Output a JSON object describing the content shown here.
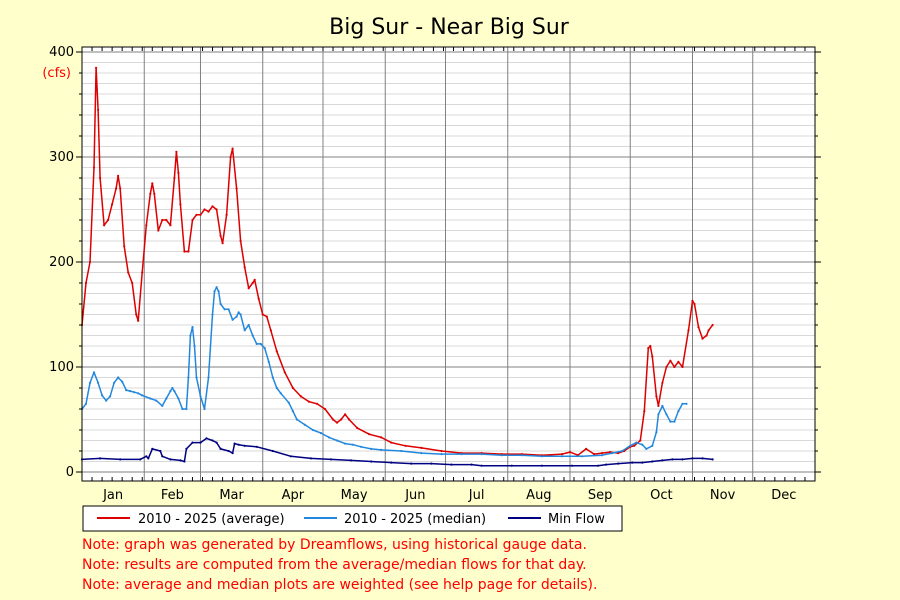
{
  "chart_data": {
    "type": "line",
    "title": "Big Sur - Near Big Sur",
    "ylabel": "(cfs)",
    "xlabel": "",
    "ylim": [
      0,
      400
    ],
    "xlim": [
      1,
      366
    ],
    "y_ticks": [
      0,
      100,
      200,
      300,
      400
    ],
    "x_tick_labels": [
      "Jan",
      "Feb",
      "Mar",
      "Apr",
      "May",
      "Jun",
      "Jul",
      "Aug",
      "Sep",
      "Oct",
      "Nov",
      "Dec"
    ],
    "grid": true,
    "series": [
      {
        "name": "2010 - 2025 (average)",
        "color": "#dd0000",
        "points": [
          [
            1,
            140
          ],
          [
            3,
            180
          ],
          [
            5,
            200
          ],
          [
            7,
            290
          ],
          [
            8,
            385
          ],
          [
            9,
            345
          ],
          [
            10,
            280
          ],
          [
            12,
            235
          ],
          [
            14,
            240
          ],
          [
            16,
            255
          ],
          [
            18,
            270
          ],
          [
            19,
            282
          ],
          [
            20,
            270
          ],
          [
            22,
            215
          ],
          [
            24,
            190
          ],
          [
            26,
            180
          ],
          [
            28,
            150
          ],
          [
            29,
            144
          ],
          [
            31,
            190
          ],
          [
            33,
            235
          ],
          [
            35,
            265
          ],
          [
            36,
            275
          ],
          [
            37,
            265
          ],
          [
            39,
            230
          ],
          [
            41,
            240
          ],
          [
            43,
            240
          ],
          [
            45,
            235
          ],
          [
            47,
            280
          ],
          [
            48,
            305
          ],
          [
            49,
            285
          ],
          [
            50,
            255
          ],
          [
            52,
            210
          ],
          [
            54,
            210
          ],
          [
            56,
            240
          ],
          [
            58,
            245
          ],
          [
            60,
            245
          ],
          [
            62,
            250
          ],
          [
            64,
            248
          ],
          [
            66,
            253
          ],
          [
            68,
            250
          ],
          [
            70,
            225
          ],
          [
            71,
            218
          ],
          [
            73,
            245
          ],
          [
            75,
            300
          ],
          [
            76,
            308
          ],
          [
            78,
            270
          ],
          [
            80,
            220
          ],
          [
            82,
            195
          ],
          [
            84,
            175
          ],
          [
            86,
            180
          ],
          [
            87,
            183
          ],
          [
            89,
            165
          ],
          [
            91,
            150
          ],
          [
            93,
            148
          ],
          [
            95,
            135
          ],
          [
            98,
            115
          ],
          [
            102,
            95
          ],
          [
            106,
            80
          ],
          [
            110,
            72
          ],
          [
            114,
            67
          ],
          [
            118,
            65
          ],
          [
            122,
            60
          ],
          [
            126,
            50
          ],
          [
            128,
            47
          ],
          [
            130,
            50
          ],
          [
            132,
            55
          ],
          [
            134,
            50
          ],
          [
            138,
            42
          ],
          [
            144,
            36
          ],
          [
            150,
            33
          ],
          [
            155,
            28
          ],
          [
            162,
            25
          ],
          [
            170,
            23
          ],
          [
            180,
            20
          ],
          [
            190,
            18
          ],
          [
            200,
            18
          ],
          [
            210,
            17
          ],
          [
            220,
            17
          ],
          [
            230,
            16
          ],
          [
            240,
            17
          ],
          [
            244,
            19
          ],
          [
            248,
            16
          ],
          [
            252,
            22
          ],
          [
            256,
            17
          ],
          [
            260,
            18
          ],
          [
            264,
            19
          ],
          [
            268,
            18
          ],
          [
            271,
            20
          ],
          [
            274,
            24
          ],
          [
            276,
            25
          ],
          [
            279,
            30
          ],
          [
            281,
            58
          ],
          [
            283,
            118
          ],
          [
            284,
            120
          ],
          [
            285,
            110
          ],
          [
            287,
            72
          ],
          [
            288,
            63
          ],
          [
            290,
            85
          ],
          [
            292,
            100
          ],
          [
            294,
            106
          ],
          [
            296,
            100
          ],
          [
            298,
            105
          ],
          [
            300,
            100
          ],
          [
            303,
            135
          ],
          [
            305,
            163
          ],
          [
            306,
            160
          ],
          [
            308,
            138
          ],
          [
            310,
            127
          ],
          [
            312,
            130
          ],
          [
            313,
            135
          ],
          [
            315,
            140
          ]
        ]
      },
      {
        "name": "2010 - 2025 (median)",
        "color": "#2288dd",
        "points": [
          [
            1,
            60
          ],
          [
            3,
            65
          ],
          [
            5,
            85
          ],
          [
            7,
            95
          ],
          [
            9,
            85
          ],
          [
            11,
            73
          ],
          [
            13,
            68
          ],
          [
            15,
            72
          ],
          [
            17,
            85
          ],
          [
            19,
            90
          ],
          [
            21,
            86
          ],
          [
            23,
            78
          ],
          [
            25,
            77
          ],
          [
            27,
            76
          ],
          [
            29,
            75
          ],
          [
            31,
            73
          ],
          [
            35,
            70
          ],
          [
            38,
            68
          ],
          [
            41,
            63
          ],
          [
            43,
            70
          ],
          [
            45,
            77
          ],
          [
            46,
            80
          ],
          [
            47,
            77
          ],
          [
            49,
            70
          ],
          [
            51,
            60
          ],
          [
            53,
            60
          ],
          [
            54,
            90
          ],
          [
            55,
            130
          ],
          [
            56,
            138
          ],
          [
            57,
            120
          ],
          [
            58,
            90
          ],
          [
            60,
            72
          ],
          [
            62,
            60
          ],
          [
            64,
            90
          ],
          [
            66,
            150
          ],
          [
            67,
            172
          ],
          [
            68,
            176
          ],
          [
            69,
            172
          ],
          [
            70,
            160
          ],
          [
            72,
            155
          ],
          [
            74,
            155
          ],
          [
            76,
            145
          ],
          [
            78,
            148
          ],
          [
            79,
            152
          ],
          [
            80,
            150
          ],
          [
            82,
            135
          ],
          [
            84,
            140
          ],
          [
            86,
            130
          ],
          [
            88,
            122
          ],
          [
            90,
            122
          ],
          [
            92,
            118
          ],
          [
            94,
            105
          ],
          [
            96,
            90
          ],
          [
            98,
            80
          ],
          [
            100,
            75
          ],
          [
            104,
            66
          ],
          [
            106,
            58
          ],
          [
            108,
            50
          ],
          [
            112,
            45
          ],
          [
            116,
            40
          ],
          [
            120,
            37
          ],
          [
            124,
            33
          ],
          [
            128,
            30
          ],
          [
            132,
            27
          ],
          [
            136,
            26
          ],
          [
            140,
            24
          ],
          [
            145,
            22
          ],
          [
            150,
            21
          ],
          [
            160,
            20
          ],
          [
            170,
            18
          ],
          [
            180,
            17
          ],
          [
            190,
            17
          ],
          [
            200,
            17
          ],
          [
            210,
            16
          ],
          [
            220,
            16
          ],
          [
            230,
            15
          ],
          [
            240,
            15
          ],
          [
            250,
            15
          ],
          [
            260,
            16
          ],
          [
            265,
            18
          ],
          [
            270,
            20
          ],
          [
            274,
            25
          ],
          [
            277,
            28
          ],
          [
            280,
            26
          ],
          [
            282,
            22
          ],
          [
            285,
            25
          ],
          [
            287,
            38
          ],
          [
            288,
            55
          ],
          [
            290,
            63
          ],
          [
            292,
            55
          ],
          [
            294,
            48
          ],
          [
            296,
            48
          ],
          [
            298,
            58
          ],
          [
            300,
            65
          ],
          [
            302,
            65
          ]
        ]
      },
      {
        "name": "Min Flow",
        "color": "#000080",
        "points": [
          [
            1,
            12
          ],
          [
            10,
            13
          ],
          [
            20,
            12
          ],
          [
            30,
            12
          ],
          [
            33,
            15
          ],
          [
            34,
            13
          ],
          [
            36,
            22
          ],
          [
            40,
            20
          ],
          [
            41,
            15
          ],
          [
            45,
            12
          ],
          [
            50,
            11
          ],
          [
            52,
            10
          ],
          [
            53,
            22
          ],
          [
            56,
            28
          ],
          [
            60,
            28
          ],
          [
            63,
            32
          ],
          [
            66,
            30
          ],
          [
            68,
            28
          ],
          [
            70,
            22
          ],
          [
            74,
            20
          ],
          [
            76,
            18
          ],
          [
            77,
            27
          ],
          [
            79,
            26
          ],
          [
            82,
            25
          ],
          [
            88,
            24
          ],
          [
            96,
            20
          ],
          [
            105,
            15
          ],
          [
            115,
            13
          ],
          [
            125,
            12
          ],
          [
            135,
            11
          ],
          [
            145,
            10
          ],
          [
            155,
            9
          ],
          [
            165,
            8
          ],
          [
            175,
            8
          ],
          [
            185,
            7
          ],
          [
            195,
            7
          ],
          [
            200,
            6
          ],
          [
            215,
            6
          ],
          [
            230,
            6
          ],
          [
            245,
            6
          ],
          [
            258,
            6
          ],
          [
            262,
            7
          ],
          [
            268,
            8
          ],
          [
            275,
            9
          ],
          [
            280,
            9
          ],
          [
            285,
            10
          ],
          [
            290,
            11
          ],
          [
            295,
            12
          ],
          [
            300,
            12
          ],
          [
            305,
            13
          ],
          [
            310,
            13
          ],
          [
            315,
            12
          ]
        ]
      }
    ]
  },
  "legend": {
    "items": [
      {
        "label": "2010 - 2025 (average)",
        "color": "#dd0000"
      },
      {
        "label": "2010 - 2025 (median)",
        "color": "#2288dd"
      },
      {
        "label": "Min Flow",
        "color": "#000080"
      }
    ]
  },
  "notes": [
    "Note: graph was generated by Dreamflows, using historical gauge data.",
    "Note: results are computed from the average/median flows for that day.",
    "Note: average and median plots are weighted (see help page for details)."
  ]
}
